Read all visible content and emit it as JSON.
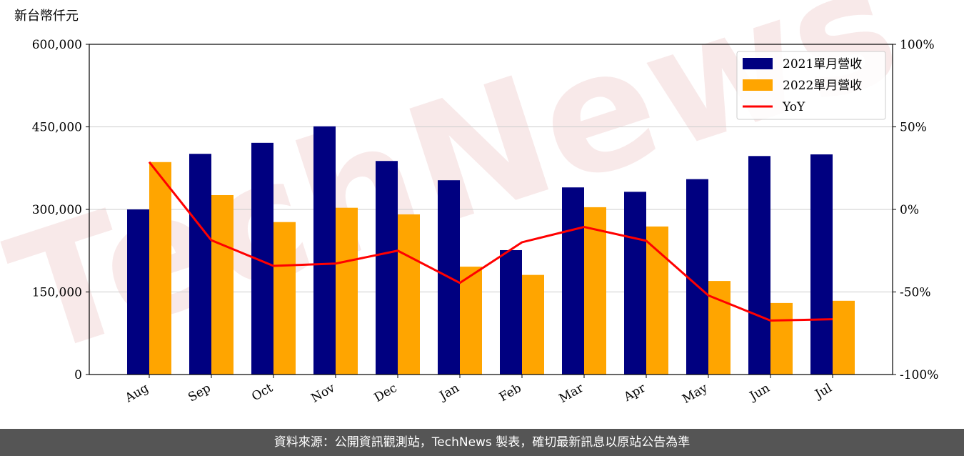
{
  "chart_data": {
    "type": "bar",
    "y_label": "新台幣仟元",
    "watermark": "TechNews",
    "categories": [
      "Aug",
      "Sep",
      "Oct",
      "Nov",
      "Dec",
      "Jan",
      "Feb",
      "Mar",
      "Apr",
      "May",
      "Jun",
      "Jul"
    ],
    "series": [
      {
        "name": "2021單月營收",
        "color": "#000080",
        "values": [
          300000,
          401000,
          421000,
          451000,
          388000,
          353000,
          226000,
          340000,
          332000,
          355000,
          397000,
          400000
        ]
      },
      {
        "name": "2022單月營收",
        "color": "#ffa500",
        "values": [
          386000,
          326000,
          277000,
          303000,
          291000,
          196000,
          181000,
          304000,
          269000,
          170000,
          130000,
          134000
        ]
      },
      {
        "name": "YoY",
        "type": "line",
        "axis": "y2",
        "color": "#ff0000",
        "values": [
          28.7,
          -18.7,
          -34.2,
          -32.8,
          -25.0,
          -44.5,
          -19.9,
          -10.6,
          -19.0,
          -52.1,
          -67.3,
          -66.5
        ]
      }
    ],
    "ylim": [
      0,
      600000
    ],
    "yticks": [
      {
        "value": 0,
        "label": "0"
      },
      {
        "value": 150000,
        "label": "150,000"
      },
      {
        "value": 300000,
        "label": "300,000"
      },
      {
        "value": 450000,
        "label": "450,000"
      },
      {
        "value": 600000,
        "label": "600,000"
      }
    ],
    "y2lim": [
      -100,
      100
    ],
    "y2ticks": [
      {
        "value": -100,
        "label": "-100%"
      },
      {
        "value": -50,
        "label": "-50%"
      },
      {
        "value": 0,
        "label": "0%"
      },
      {
        "value": 50,
        "label": "50%"
      },
      {
        "value": 100,
        "label": "100%"
      }
    ],
    "grid": true,
    "legend": "upper right",
    "source": "資料來源：公開資訊觀測站，TechNews 製表，確切最新訊息以原站公告為準"
  }
}
